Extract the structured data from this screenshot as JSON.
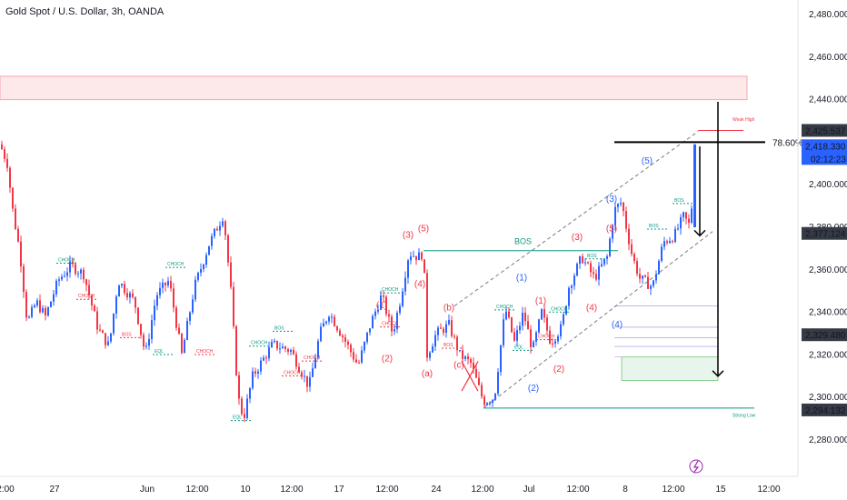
{
  "header": {
    "title": "Gold Spot / U.S. Dollar, 3h, OANDA"
  },
  "colors": {
    "up": "#2962ff",
    "down": "#f23645",
    "bos_green": "#089981",
    "fib_red": "#f23645",
    "price_tag": "#2962ff",
    "dark_tag": "#363a45"
  },
  "chart_data": {
    "type": "candlestick",
    "symbol": "Gold Spot / U.S. Dollar",
    "timeframe": "3h",
    "source": "OANDA",
    "ylim": [
      2272,
      2490
    ],
    "y_ticks": [
      "2,480.000",
      "2,460.000",
      "2,440.000",
      "2,400.000",
      "2,380.000",
      "2,360.000",
      "2,340.000",
      "2,320.000",
      "2,300.000",
      "2,280.000"
    ],
    "x_ticks": [
      "2:00",
      "27",
      "Jun",
      "12:00",
      "10",
      "12:00",
      "17",
      "12:00",
      "24",
      "12:00",
      "Jul",
      "12:00",
      "8",
      "12:00",
      "12:00",
      "15",
      "12:00"
    ],
    "price_tags": [
      {
        "label": "2,425.537",
        "value": 2425.537,
        "style": "dark"
      },
      {
        "label": "2,418.330",
        "value": 2418.33,
        "style": "current",
        "countdown": "02:12:23"
      },
      {
        "label": "2,377.124",
        "value": 2377.124,
        "style": "dark"
      },
      {
        "label": "2,329.480",
        "value": 2329.48,
        "style": "dark"
      },
      {
        "label": "2,294.132",
        "value": 2294.132,
        "style": "dark"
      }
    ],
    "supply_zone": [
      2440,
      2451
    ],
    "fib_label": "78.60%",
    "fib_level": 2420,
    "annotations": {
      "weak_high": "Weak High",
      "strong_low": "Strong Low",
      "bos_big": "BOS",
      "bos": "BOS",
      "choch": "CHOCH",
      "eql": "EQL"
    },
    "waves": [
      {
        "label": "(3)",
        "x": 449,
        "y": 2375,
        "color": "red"
      },
      {
        "label": "(5)",
        "x": 466,
        "y": 2378,
        "color": "red"
      },
      {
        "label": "(4)",
        "x": 462,
        "y": 2352,
        "color": "red"
      },
      {
        "label": "(1)",
        "x": 420,
        "y": 2342,
        "color": "red"
      },
      {
        "label": "(2)",
        "x": 426,
        "y": 2317,
        "color": "red"
      },
      {
        "label": "(a)",
        "x": 470,
        "y": 2310,
        "color": "red"
      },
      {
        "label": "(b)",
        "x": 494,
        "y": 2341,
        "color": "red"
      },
      {
        "label": "(c)",
        "x": 505,
        "y": 2314,
        "color": "red"
      },
      {
        "label": "(1)",
        "x": 574,
        "y": 2355,
        "color": "blue"
      },
      {
        "label": "(2)",
        "x": 587,
        "y": 2303,
        "color": "blue"
      },
      {
        "label": "(1)",
        "x": 595,
        "y": 2344,
        "color": "red"
      },
      {
        "label": "(2)",
        "x": 615,
        "y": 2312,
        "color": "red"
      },
      {
        "label": "(3)",
        "x": 635,
        "y": 2374,
        "color": "red"
      },
      {
        "label": "(4)",
        "x": 651,
        "y": 2341,
        "color": "red"
      },
      {
        "label": "(5)",
        "x": 673,
        "y": 2378,
        "color": "red"
      },
      {
        "label": "(3)",
        "x": 673,
        "y": 2392,
        "color": "blue"
      },
      {
        "label": "(5)",
        "x": 712,
        "y": 2410,
        "color": "blue"
      },
      {
        "label": "(4)",
        "x": 679,
        "y": 2333,
        "color": "blue"
      }
    ]
  }
}
